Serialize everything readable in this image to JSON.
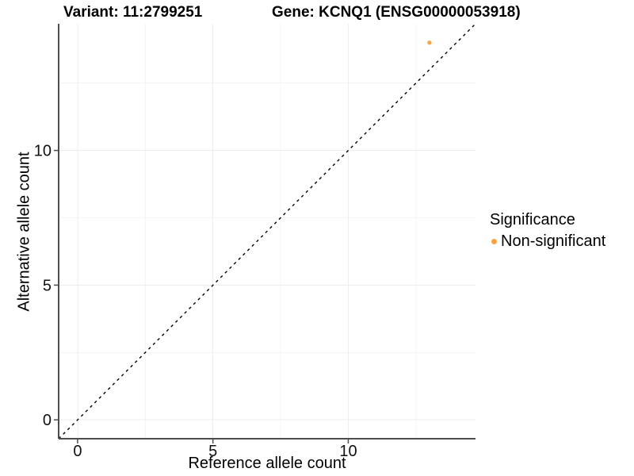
{
  "title": {
    "variant": "Variant: 11:2799251",
    "gene": "Gene: KCNQ1 (ENSG00000053918)"
  },
  "chart_data": {
    "type": "scatter",
    "title": "Variant: 11:2799251    Gene: KCNQ1 (ENSG00000053918)",
    "xlabel": "Reference allele count",
    "ylabel": "Alternative allele count",
    "xlim": [
      -0.7,
      14.7
    ],
    "ylim": [
      -0.7,
      14.7
    ],
    "x_ticks": [
      0,
      5,
      10
    ],
    "y_ticks": [
      0,
      5,
      10
    ],
    "x_minor_ticks": [
      2.5,
      7.5,
      12.5
    ],
    "y_minor_ticks": [
      2.5,
      7.5,
      12.5
    ],
    "grid": "major and minor, very light gray on white",
    "points": [
      {
        "x": 13,
        "y": 14,
        "series": "Non-significant"
      }
    ],
    "reference_line": {
      "type": "identity y = x",
      "style": "dashed",
      "color": "#000000"
    },
    "legend": {
      "title": "Significance",
      "position": "right",
      "entries": [
        {
          "label": "Non-significant",
          "color": "#F8A442"
        }
      ]
    }
  },
  "colors": {
    "point": "#F8A442",
    "axis_line": "#4d4d4d",
    "tick_text": "#111111",
    "grid_major": "#ededed",
    "grid_minor": "#f4f4f4",
    "background": "#ffffff"
  }
}
